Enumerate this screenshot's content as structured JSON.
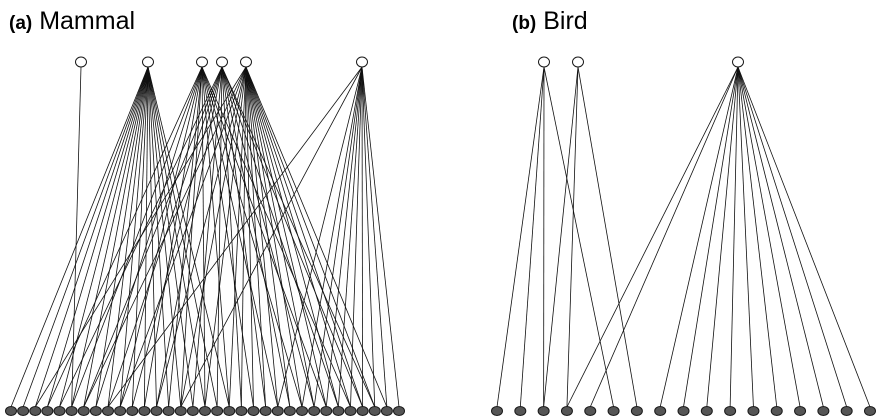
{
  "colors": {
    "edge": "#111111",
    "top_node_fill": "#ffffff",
    "bottom_node_fill": "#555555",
    "node_stroke": "#1a1a1a"
  },
  "panels": [
    {
      "id": "a",
      "tag": "(a)",
      "label": "Mammal",
      "top_node_count": 6,
      "bottom_node_count": 33,
      "links": [
        [
          0,
          5
        ],
        [
          1,
          0
        ],
        [
          1,
          1
        ],
        [
          1,
          2
        ],
        [
          1,
          3
        ],
        [
          1,
          4
        ],
        [
          1,
          5
        ],
        [
          1,
          6
        ],
        [
          1,
          7
        ],
        [
          1,
          8
        ],
        [
          1,
          9
        ],
        [
          1,
          10
        ],
        [
          1,
          11
        ],
        [
          1,
          12
        ],
        [
          1,
          13
        ],
        [
          1,
          14
        ],
        [
          1,
          15
        ],
        [
          1,
          16
        ],
        [
          1,
          17
        ],
        [
          1,
          18
        ],
        [
          2,
          3
        ],
        [
          2,
          5
        ],
        [
          2,
          7
        ],
        [
          2,
          9
        ],
        [
          2,
          11
        ],
        [
          2,
          13
        ],
        [
          2,
          14
        ],
        [
          2,
          16
        ],
        [
          2,
          18
        ],
        [
          2,
          20
        ],
        [
          2,
          22
        ],
        [
          2,
          24
        ],
        [
          2,
          26
        ],
        [
          2,
          28
        ],
        [
          3,
          4
        ],
        [
          3,
          6
        ],
        [
          3,
          8
        ],
        [
          3,
          10
        ],
        [
          3,
          12
        ],
        [
          3,
          15
        ],
        [
          3,
          17
        ],
        [
          3,
          19
        ],
        [
          3,
          21
        ],
        [
          3,
          23
        ],
        [
          3,
          25
        ],
        [
          3,
          27
        ],
        [
          3,
          29
        ],
        [
          3,
          30
        ],
        [
          4,
          2
        ],
        [
          4,
          6
        ],
        [
          4,
          9
        ],
        [
          4,
          12
        ],
        [
          4,
          14
        ],
        [
          4,
          16
        ],
        [
          4,
          18
        ],
        [
          4,
          19
        ],
        [
          4,
          20
        ],
        [
          4,
          21
        ],
        [
          4,
          22
        ],
        [
          4,
          23
        ],
        [
          4,
          24
        ],
        [
          4,
          25
        ],
        [
          4,
          26
        ],
        [
          4,
          27
        ],
        [
          4,
          28
        ],
        [
          4,
          29
        ],
        [
          4,
          30
        ],
        [
          4,
          31
        ],
        [
          5,
          8
        ],
        [
          5,
          14
        ],
        [
          5,
          22
        ],
        [
          5,
          24
        ],
        [
          5,
          25
        ],
        [
          5,
          26
        ],
        [
          5,
          27
        ],
        [
          5,
          28
        ],
        [
          5,
          29
        ],
        [
          5,
          30
        ],
        [
          5,
          31
        ],
        [
          5,
          32
        ]
      ]
    },
    {
      "id": "b",
      "tag": "(b)",
      "label": "Bird",
      "top_node_count": 3,
      "bottom_node_count": 17,
      "links": [
        [
          0,
          0
        ],
        [
          0,
          1
        ],
        [
          0,
          2
        ],
        [
          0,
          5
        ],
        [
          1,
          2
        ],
        [
          1,
          3
        ],
        [
          1,
          6
        ],
        [
          2,
          3
        ],
        [
          2,
          4
        ],
        [
          2,
          7
        ],
        [
          2,
          8
        ],
        [
          2,
          9
        ],
        [
          2,
          10
        ],
        [
          2,
          11
        ],
        [
          2,
          12
        ],
        [
          2,
          13
        ],
        [
          2,
          14
        ],
        [
          2,
          15
        ],
        [
          2,
          16
        ]
      ]
    }
  ]
}
